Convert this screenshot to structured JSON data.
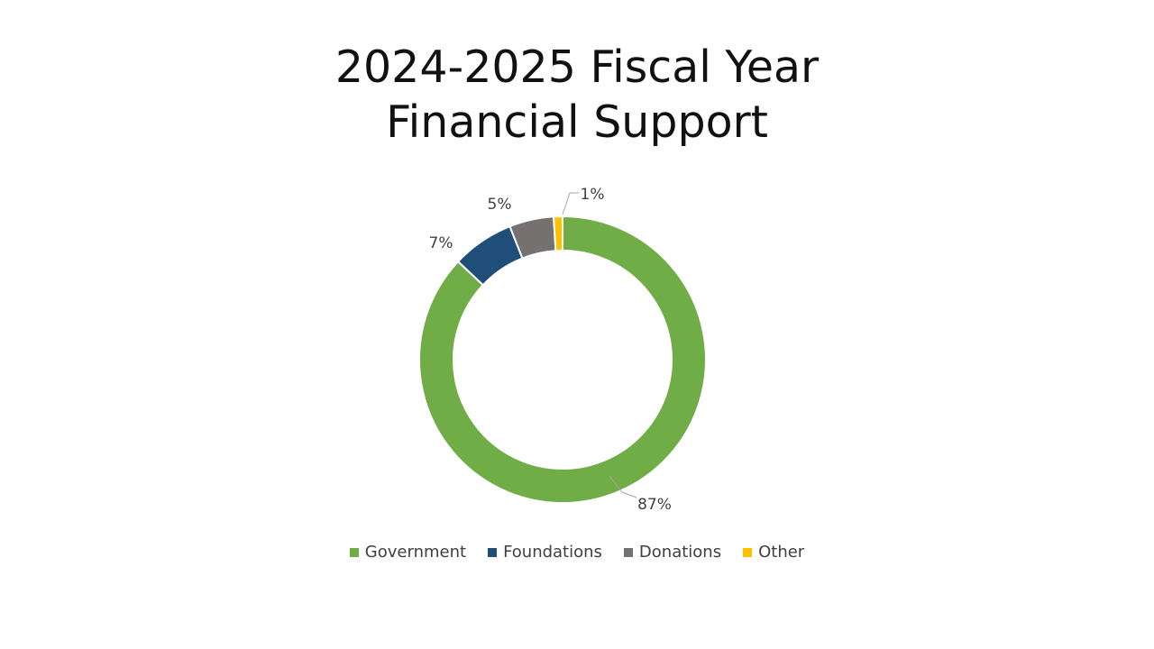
{
  "chart_data": {
    "type": "pie",
    "variant": "doughnut",
    "title": "2024-2025 Fiscal Year Financial Support",
    "title_lines": [
      "2024-2025 Fiscal Year",
      "Financial Support"
    ],
    "categories": [
      "Government",
      "Foundations",
      "Donations",
      "Other"
    ],
    "values": [
      87,
      7,
      5,
      1
    ],
    "data_labels": [
      "87%",
      "7%",
      "5%",
      "1%"
    ],
    "colors": [
      "#70ad47",
      "#1f4e79",
      "#767171",
      "#ffc000"
    ],
    "legend_position": "bottom"
  }
}
